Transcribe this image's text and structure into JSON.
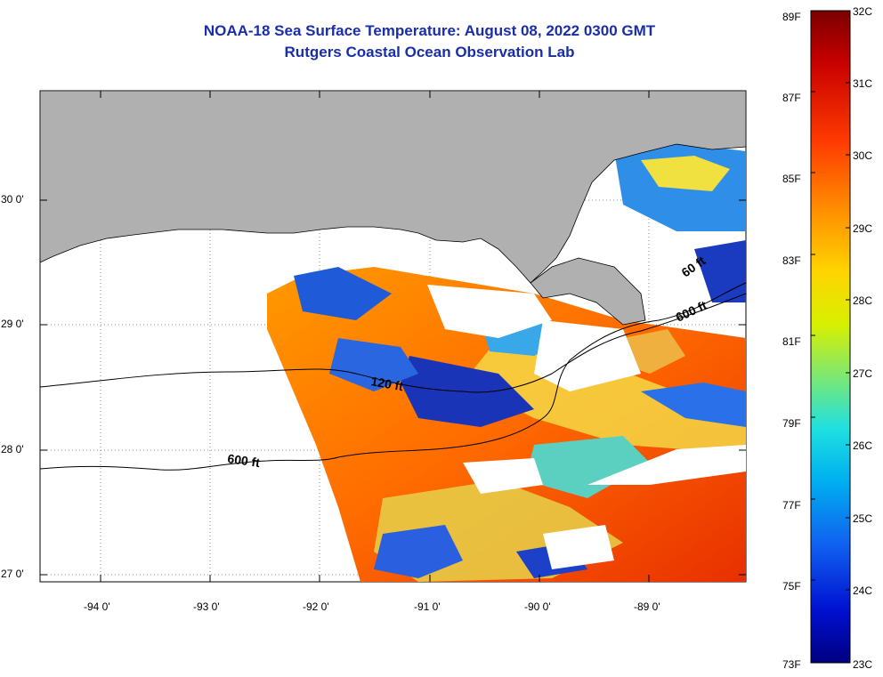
{
  "title": "NOAA-18 Sea Surface Temperature:  August 08, 2022 0300 GMT",
  "subtitle": "Rutgers Coastal Ocean Observation Lab",
  "lat_labels": [
    "30 0'",
    "29 0'",
    "28 0'",
    "27 0'"
  ],
  "lon_labels": [
    "-94 0'",
    "-93 0'",
    "-92 0'",
    "-91 0'",
    "-90 0'",
    "-89 0'"
  ],
  "contour_labels": [
    "120 ft",
    "600 ft",
    "600 ft",
    "60 ft"
  ],
  "colorbar": {
    "fahrenheit": [
      "89F",
      "87F",
      "85F",
      "83F",
      "81F",
      "79F",
      "77F",
      "75F",
      "73F"
    ],
    "celsius": [
      "32C",
      "31C",
      "30C",
      "29C",
      "28C",
      "27C",
      "26C",
      "25C",
      "24C",
      "23C"
    ]
  },
  "colors": {
    "land": "#b0b0b0",
    "title": "#1a2ea8"
  }
}
